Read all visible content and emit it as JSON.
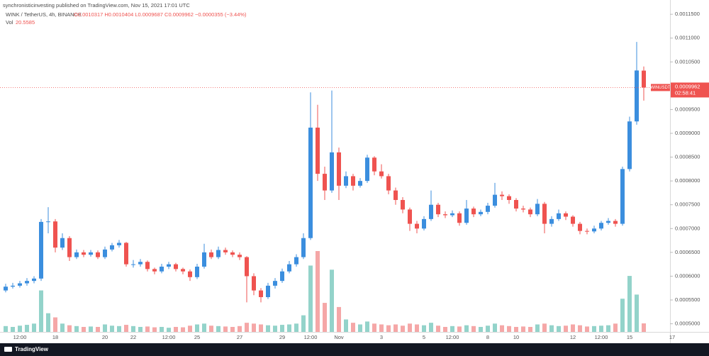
{
  "chart_data": {
    "type": "candlestick",
    "attribution": "synchronisticinvesting published on TradingView.com, Nov 15, 2021 17:01 UTC",
    "symbol": "WINK / TetherUS, 4h, BINANCE",
    "ohlc_text": "O0.0010317 H0.0010404 L0.0009687 C0.0009962 −0.0000355 (−3.44%)",
    "volume_label": "Vol",
    "ticker": "WINUSDT",
    "countdown": "02:58:41",
    "brand": "TradingView",
    "up_color": "#3b8ede",
    "down_color": "#ef5350",
    "volume_up_color": "#93d3ca",
    "volume_down_color": "#f5a7a7",
    "grid": false,
    "ylim": [
      0.000483,
      0.00118
    ],
    "yticks": [
      {
        "value": 0.0005,
        "label": "0.0005000"
      },
      {
        "value": 0.00055,
        "label": "0.0005500"
      },
      {
        "value": 0.0006,
        "label": "0.0006000"
      },
      {
        "value": 0.00065,
        "label": "0.0006500"
      },
      {
        "value": 0.0007,
        "label": "0.0007000"
      },
      {
        "value": 0.00075,
        "label": "0.0007500"
      },
      {
        "value": 0.0008,
        "label": "0.0008000"
      },
      {
        "value": 0.00085,
        "label": "0.0008500"
      },
      {
        "value": 0.0009,
        "label": "0.0009000"
      },
      {
        "value": 0.00095,
        "label": "0.0009500"
      },
      {
        "value": 0.001,
        "label": "0.0010000"
      },
      {
        "value": 0.00105,
        "label": "0.0010500"
      },
      {
        "value": 0.0011,
        "label": "0.0011000"
      },
      {
        "value": 0.00115,
        "label": "0.0011500"
      }
    ],
    "categories": [
      null,
      null,
      "12:00",
      null,
      null,
      null,
      null,
      "18",
      null,
      null,
      null,
      null,
      null,
      null,
      "20",
      null,
      null,
      null,
      "22",
      null,
      null,
      null,
      null,
      "12:00",
      null,
      null,
      null,
      "25",
      null,
      null,
      null,
      null,
      null,
      "27",
      null,
      null,
      null,
      null,
      null,
      "29",
      null,
      null,
      null,
      "12:00",
      null,
      null,
      null,
      "Nov",
      null,
      null,
      null,
      null,
      null,
      "3",
      null,
      null,
      null,
      null,
      null,
      "5",
      null,
      null,
      null,
      "12:00",
      null,
      null,
      null,
      null,
      "8",
      null,
      null,
      null,
      "10",
      null,
      null,
      null,
      null,
      null,
      null,
      null,
      "12",
      null,
      null,
      null,
      "12:00",
      null,
      null,
      null,
      "15",
      null,
      null,
      null,
      null,
      null,
      "17"
    ],
    "open": [
      0.00057,
      0.000578,
      0.00058,
      0.000585,
      0.00059,
      0.000595,
      0.000714,
      0.000715,
      0.00066,
      0.00068,
      0.00064,
      0.00065,
      0.000645,
      0.00065,
      0.00064,
      0.000656,
      0.000665,
      0.00067,
      0.000625,
      0.000625,
      0.00063,
      0.000615,
      0.00061,
      0.00062,
      0.000625,
      0.000615,
      0.00061,
      0.000598,
      0.00062,
      0.00065,
      0.00064,
      0.000655,
      0.00065,
      0.000645,
      0.00064,
      0.0006,
      0.00057,
      0.000556,
      0.00058,
      0.00059,
      0.00061,
      0.000625,
      0.00064,
      0.00068,
      0.000912,
      0.000815,
      0.00078,
      0.00086,
      0.00079,
      0.00081,
      0.00079,
      0.0008,
      0.000849,
      0.00082,
      0.00081,
      0.00078,
      0.00076,
      0.00074,
      0.00071,
      0.0007,
      0.00072,
      0.00075,
      0.00073,
      0.000728,
      0.000732,
      0.000712,
      0.000742,
      0.00073,
      0.000735,
      0.000748,
      0.000771,
      0.000768,
      0.00076,
      0.000742,
      0.00074,
      0.00073,
      0.000752,
      0.00071,
      0.00072,
      0.000732,
      0.000725,
      0.00071,
      0.000695,
      0.000694,
      0.0007,
      0.000712,
      0.000716,
      0.00071,
      0.000825,
      0.000925,
      0.0010317,
      null,
      null,
      null,
      null
    ],
    "high": [
      0.000584,
      0.000586,
      0.00059,
      0.000596,
      0.0006,
      0.00072,
      0.000745,
      0.00072,
      0.00069,
      0.000684,
      0.000656,
      0.000655,
      0.000655,
      0.000654,
      0.000662,
      0.00067,
      0.000676,
      0.000672,
      0.000634,
      0.000636,
      0.000633,
      0.000618,
      0.000626,
      0.00063,
      0.000628,
      0.000618,
      0.000614,
      0.000626,
      0.000668,
      0.000656,
      0.000662,
      0.00066,
      0.000654,
      0.00065,
      0.000642,
      0.000606,
      0.000575,
      0.000586,
      0.000596,
      0.000616,
      0.000632,
      0.000646,
      0.00069,
      0.000986,
      0.00096,
      0.00083,
      0.00099,
      0.00087,
      0.00082,
      0.000815,
      0.000806,
      0.000855,
      0.000852,
      0.000835,
      0.000815,
      0.000786,
      0.000766,
      0.000744,
      0.000716,
      0.000726,
      0.00078,
      0.000754,
      0.000736,
      0.000738,
      0.000736,
      0.00076,
      0.000746,
      0.00074,
      0.000754,
      0.000796,
      0.000778,
      0.000772,
      0.000764,
      0.000748,
      0.000744,
      0.000762,
      0.000756,
      0.000726,
      0.00074,
      0.000736,
      0.000728,
      0.000714,
      0.0007,
      0.000706,
      0.000716,
      0.000722,
      0.00072,
      0.00083,
      0.000935,
      0.001092,
      0.0010404,
      null,
      null,
      null,
      null
    ],
    "low": [
      0.000566,
      0.000574,
      0.000576,
      0.00058,
      0.000585,
      0.00059,
      0.00069,
      0.00065,
      0.000655,
      0.000632,
      0.000636,
      0.00064,
      0.000641,
      0.000636,
      0.000636,
      0.000652,
      0.00066,
      0.00062,
      0.000618,
      0.00062,
      0.00061,
      0.000604,
      0.000606,
      0.000615,
      0.00061,
      0.000604,
      0.00059,
      0.000594,
      0.000616,
      0.000636,
      0.000636,
      0.000645,
      0.00064,
      0.000634,
      0.000545,
      0.00056,
      0.000545,
      0.000552,
      0.000574,
      0.000586,
      0.000606,
      0.00062,
      0.000636,
      0.000676,
      0.0008,
      0.00076,
      0.000775,
      0.00076,
      0.000785,
      0.00078,
      0.000786,
      0.000796,
      0.000812,
      0.000805,
      0.000772,
      0.00075,
      0.000732,
      0.000695,
      0.00069,
      0.000696,
      0.000716,
      0.000724,
      0.000722,
      0.000724,
      0.000706,
      0.000708,
      0.000724,
      0.000726,
      0.00073,
      0.000744,
      0.00076,
      0.000752,
      0.000736,
      0.000734,
      0.000724,
      0.000726,
      0.00069,
      0.000704,
      0.000716,
      0.000718,
      0.000704,
      0.000688,
      0.000688,
      0.00069,
      0.000696,
      0.000708,
      0.000704,
      0.000706,
      0.00082,
      0.000918,
      0.0009687,
      null,
      null,
      null,
      null
    ],
    "close": [
      0.000578,
      0.00058,
      0.000585,
      0.00059,
      0.000595,
      0.000714,
      0.000715,
      0.00066,
      0.00068,
      0.00064,
      0.00065,
      0.000645,
      0.00065,
      0.00064,
      0.000656,
      0.000665,
      0.00067,
      0.000625,
      0.000625,
      0.00063,
      0.000615,
      0.00061,
      0.00062,
      0.000625,
      0.000615,
      0.00061,
      0.000598,
      0.00062,
      0.00065,
      0.00064,
      0.000655,
      0.00065,
      0.000645,
      0.00064,
      0.0006,
      0.00057,
      0.000556,
      0.00058,
      0.00059,
      0.00061,
      0.000625,
      0.00064,
      0.00068,
      0.000912,
      0.000815,
      0.00078,
      0.00086,
      0.00079,
      0.00081,
      0.00079,
      0.0008,
      0.000849,
      0.00082,
      0.00081,
      0.00078,
      0.00076,
      0.00074,
      0.00071,
      0.0007,
      0.00072,
      0.00075,
      0.00073,
      0.000728,
      0.000732,
      0.000712,
      0.000742,
      0.00073,
      0.000735,
      0.000748,
      0.000771,
      0.000768,
      0.00076,
      0.000742,
      0.00074,
      0.00073,
      0.000752,
      0.00071,
      0.00072,
      0.000732,
      0.000725,
      0.00071,
      0.000695,
      0.000694,
      0.0007,
      0.000712,
      0.000716,
      0.00071,
      0.000825,
      0.000925,
      0.001032,
      0.0009962,
      null,
      null,
      null,
      null
    ],
    "volume": [
      14,
      12,
      15,
      17,
      20,
      100,
      45,
      35,
      20,
      16,
      14,
      12,
      13,
      12,
      18,
      15,
      14,
      17,
      14,
      12,
      13,
      11,
      12,
      10,
      12,
      11,
      15,
      18,
      20,
      15,
      14,
      13,
      12,
      14,
      22,
      20,
      18,
      16,
      15,
      17,
      18,
      20,
      40,
      160,
      195,
      70,
      150,
      60,
      30,
      22,
      18,
      25,
      20,
      18,
      16,
      18,
      15,
      20,
      18,
      16,
      22,
      15,
      12,
      14,
      13,
      16,
      14,
      12,
      15,
      20,
      16,
      14,
      12,
      13,
      12,
      18,
      20,
      16,
      14,
      15,
      18,
      16,
      13,
      14,
      15,
      16,
      20,
      80,
      135,
      90,
      20.5585,
      null,
      null,
      null,
      null
    ]
  }
}
